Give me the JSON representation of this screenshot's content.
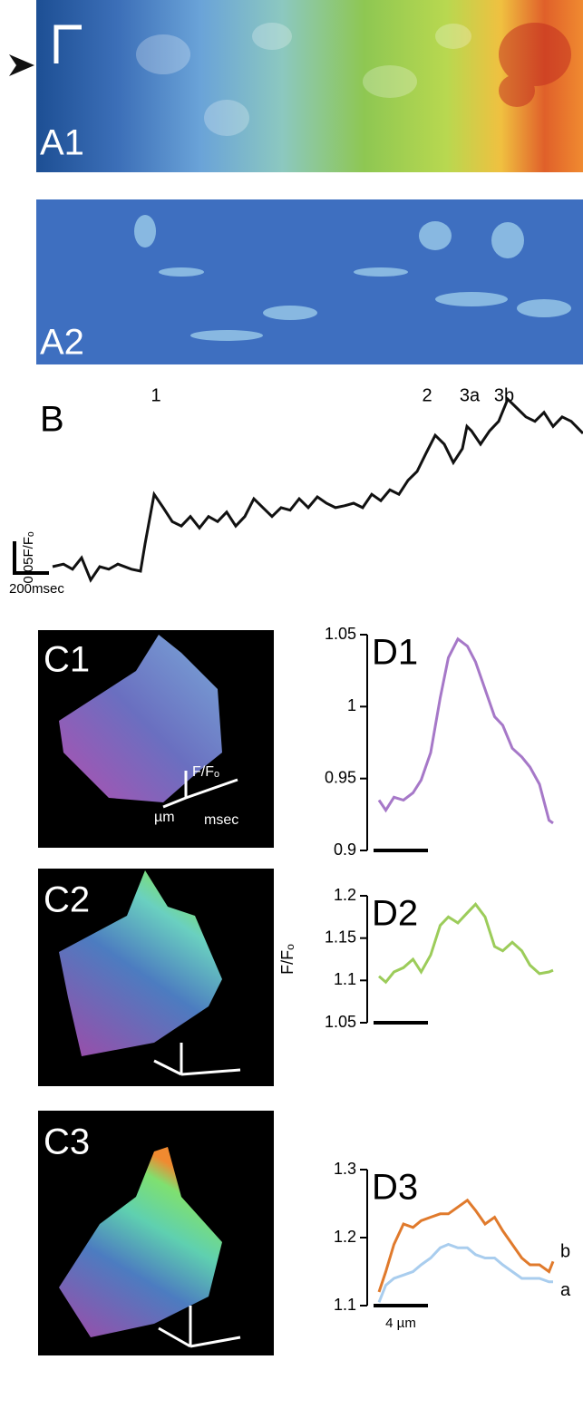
{
  "panels": {
    "a1": "A1",
    "a2": "A2",
    "c1": "C1",
    "c2": "C2",
    "c3": "C3",
    "c1_axes": [
      "F/Fₒ",
      "µm",
      "msec"
    ]
  },
  "chart_data": [
    {
      "type": "trace",
      "title": "B",
      "annotations": [
        "1",
        "2",
        "3a",
        "3b"
      ],
      "scale_bars": [
        {
          "label": "0.05F/Fₒ",
          "value": 0.05
        },
        {
          "label": "200msec",
          "value": 200
        }
      ],
      "color": "#111111",
      "x": [
        0,
        60,
        110,
        160,
        210,
        260,
        310,
        360,
        435,
        485,
        510,
        560,
        610,
        660,
        710,
        760,
        810,
        860,
        910,
        960,
        1010,
        1060,
        1110,
        1160,
        1210,
        1260,
        1310,
        1360,
        1410,
        1460,
        1510,
        1560,
        1610,
        1660,
        1710,
        1760,
        1810,
        1860,
        1910,
        1960,
        2010,
        2060,
        2110,
        2160,
        2210,
        2260,
        2285,
        2310,
        2360,
        2410,
        2460,
        2510,
        2560,
        2610,
        2660,
        2710,
        2760,
        2810,
        2860,
        2925
      ],
      "values": [
        0,
        0.004,
        -0.004,
        0.014,
        -0.021,
        0,
        -0.004,
        0.004,
        -0.004,
        -0.007,
        0.036,
        0.114,
        0.093,
        0.071,
        0.064,
        0.079,
        0.061,
        0.079,
        0.071,
        0.086,
        0.064,
        0.079,
        0.107,
        0.093,
        0.079,
        0.093,
        0.089,
        0.107,
        0.093,
        0.11,
        0.1,
        0.093,
        0.096,
        0.1,
        0.093,
        0.114,
        0.104,
        0.121,
        0.114,
        0.136,
        0.15,
        0.179,
        0.207,
        0.193,
        0.164,
        0.186,
        0.221,
        0.214,
        0.193,
        0.214,
        0.229,
        0.264,
        0.25,
        0.236,
        0.229,
        0.243,
        0.221,
        0.236,
        0.229,
        0.21
      ]
    },
    {
      "type": "line",
      "title": "D1",
      "ylim": [
        0.9,
        1.05
      ],
      "yticks": [
        0.9,
        0.95,
        1,
        1.05
      ],
      "color": "#a678c8",
      "x": [
        0,
        0.5,
        1.1,
        1.8,
        2.5,
        3.1,
        3.8,
        4.5,
        5.1,
        5.8,
        6.5,
        7.1,
        7.8,
        8.5,
        9.1,
        9.8,
        10.5,
        11.1,
        11.8,
        12.5,
        12.8
      ],
      "values": [
        0.935,
        0.928,
        0.937,
        0.935,
        0.94,
        0.949,
        0.968,
        1.006,
        1.034,
        1.047,
        1.042,
        1.031,
        1.012,
        0.993,
        0.987,
        0.971,
        0.965,
        0.958,
        0.946,
        0.921,
        0.919
      ]
    },
    {
      "type": "line",
      "title": "D2",
      "ylabel": "F/Fₒ",
      "ylim": [
        1.05,
        1.2
      ],
      "yticks": [
        1.05,
        1.1,
        1.15,
        1.2
      ],
      "color": "#9ccc5a",
      "x": [
        0,
        0.5,
        1.1,
        1.8,
        2.5,
        3.1,
        3.8,
        4.5,
        5.1,
        5.8,
        6.5,
        7.1,
        7.8,
        8.5,
        9.1,
        9.8,
        10.5,
        11.1,
        11.8,
        12.5,
        12.8
      ],
      "values": [
        1.105,
        1.098,
        1.11,
        1.115,
        1.125,
        1.11,
        1.13,
        1.165,
        1.175,
        1.168,
        1.18,
        1.19,
        1.175,
        1.14,
        1.135,
        1.145,
        1.135,
        1.118,
        1.108,
        1.11,
        1.112
      ]
    },
    {
      "type": "line",
      "title": "D3",
      "ylim": [
        1.1,
        1.3
      ],
      "yticks": [
        1.1,
        1.2,
        1.3
      ],
      "scale_label": "4 µm",
      "x": [
        0,
        0.5,
        1.1,
        1.8,
        2.5,
        3.1,
        3.8,
        4.5,
        5.1,
        5.8,
        6.5,
        7.1,
        7.8,
        8.5,
        9.1,
        9.8,
        10.5,
        11.1,
        11.8,
        12.5,
        12.8
      ],
      "series": [
        {
          "name": "b",
          "color": "#e07a2c",
          "values": [
            1.12,
            1.15,
            1.19,
            1.22,
            1.215,
            1.225,
            1.23,
            1.235,
            1.235,
            1.245,
            1.255,
            1.24,
            1.22,
            1.23,
            1.21,
            1.19,
            1.17,
            1.16,
            1.16,
            1.15,
            1.165
          ]
        },
        {
          "name": "a",
          "color": "#a9cdee",
          "values": [
            1.105,
            1.13,
            1.14,
            1.145,
            1.15,
            1.16,
            1.17,
            1.185,
            1.19,
            1.185,
            1.185,
            1.175,
            1.17,
            1.17,
            1.16,
            1.15,
            1.14,
            1.14,
            1.14,
            1.135,
            1.135
          ]
        }
      ]
    }
  ]
}
